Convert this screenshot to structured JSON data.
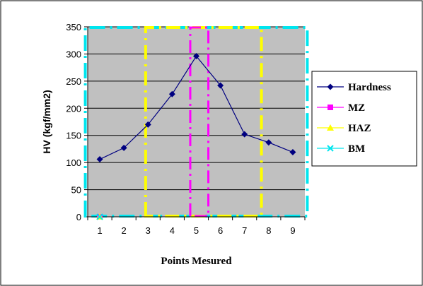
{
  "chart_data": {
    "type": "line",
    "xlabel": "Points Mesured",
    "ylabel": "HV (kgf/mm2)",
    "x": [
      1,
      2,
      3,
      4,
      5,
      6,
      7,
      8,
      9
    ],
    "ylim": [
      0,
      350
    ],
    "yticks": [
      0,
      50,
      100,
      150,
      200,
      250,
      300,
      350
    ],
    "grid": true,
    "legend_position": "right",
    "series": [
      {
        "name": "Hardness",
        "color": "#000080",
        "marker": "diamond",
        "values": [
          106,
          127,
          170,
          226,
          296,
          242,
          152,
          137,
          119
        ]
      },
      {
        "name": "MZ",
        "color": "#ff00ff",
        "marker": "square",
        "region_x": [
          4.75,
          5.5
        ]
      },
      {
        "name": "HAZ",
        "color": "#ffff00",
        "marker": "triangle",
        "region_x": [
          2.9,
          7.7
        ]
      },
      {
        "name": "BM",
        "color": "#00e5ee",
        "marker": "x",
        "region_x": [
          0.4,
          9.6
        ]
      }
    ]
  }
}
